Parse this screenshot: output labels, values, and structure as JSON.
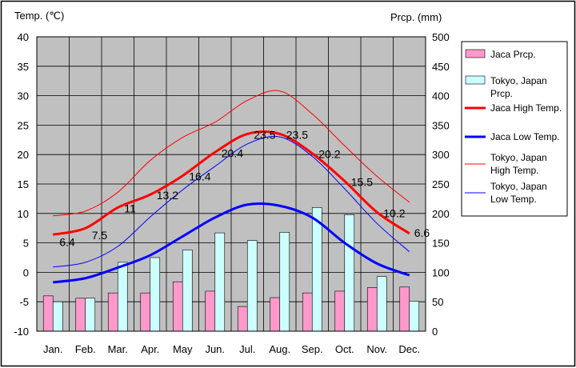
{
  "chart_data": {
    "type": "bar+line",
    "categories": [
      "Jan.",
      "Feb.",
      "Mar.",
      "Apr.",
      "May",
      "Jun.",
      "Jul.",
      "Aug.",
      "Sep.",
      "Oct.",
      "Nov.",
      "Dec."
    ],
    "y_left": {
      "label": "Temp. (℃)",
      "min": -10,
      "max": 40,
      "step": 5
    },
    "y_right": {
      "label": "Prcp. (mm)",
      "min": 0,
      "max": 500,
      "step": 50
    },
    "grid": true,
    "legend_position": "right",
    "series": [
      {
        "name": "Jaca Prcp.",
        "kind": "bar",
        "axis": "right",
        "color": "#ff99cc",
        "values": [
          60,
          56,
          65,
          65,
          84,
          68,
          42,
          57,
          65,
          68,
          74,
          75
        ]
      },
      {
        "name": "Tokyo, Japan Prcp.",
        "kind": "bar",
        "axis": "right",
        "color": "#ccffff",
        "values": [
          50,
          56,
          117,
          125,
          138,
          167,
          154,
          168,
          210,
          198,
          93,
          51
        ]
      },
      {
        "name": "Jaca High Temp.",
        "kind": "line",
        "axis": "left",
        "color": "#ff0000",
        "width": 3,
        "values": [
          6.4,
          7.5,
          11,
          13.2,
          16.4,
          20.4,
          23.5,
          23.5,
          20.2,
          15.5,
          10.2,
          6.6
        ],
        "labels": [
          "6.4",
          "7.5",
          "11",
          "13.2",
          "16.4",
          "20.4",
          "23.5",
          "23.5",
          "20.2",
          "15.5",
          "10.2",
          "6.6"
        ]
      },
      {
        "name": "Jaca Low Temp.",
        "kind": "line",
        "axis": "left",
        "color": "#0000ff",
        "width": 3,
        "values": [
          -1.7,
          -1.0,
          0.8,
          2.9,
          6.1,
          9.3,
          11.5,
          11.3,
          9.3,
          5.0,
          1.5,
          -0.5
        ]
      },
      {
        "name": "Tokyo, Japan High Temp.",
        "kind": "line",
        "axis": "left",
        "color": "#ff0000",
        "width": 1,
        "values": [
          9.6,
          10.4,
          13.6,
          19.0,
          22.9,
          25.5,
          29.2,
          30.8,
          26.9,
          21.5,
          16.3,
          11.9
        ]
      },
      {
        "name": "Tokyo, Japan Low Temp.",
        "kind": "line",
        "axis": "left",
        "color": "#0000ff",
        "width": 1,
        "values": [
          0.9,
          1.7,
          4.4,
          9.4,
          14.0,
          18.0,
          21.8,
          23.0,
          19.7,
          14.2,
          8.3,
          3.5
        ]
      }
    ],
    "legend": [
      {
        "text": [
          "Jaca Prcp."
        ]
      },
      {
        "text": [
          "Tokyo, Japan",
          "Prcp."
        ]
      },
      {
        "text": [
          "Jaca High Temp."
        ]
      },
      {
        "text": [
          "Jaca Low Temp."
        ]
      },
      {
        "text": [
          "Tokyo, Japan",
          "High Temp."
        ]
      },
      {
        "text": [
          "Tokyo, Japan",
          "Low Temp."
        ]
      }
    ]
  },
  "colors": {
    "plot_background": "#c0c0c0",
    "outer_border": "#000000",
    "legend_background": "#ffffff"
  }
}
